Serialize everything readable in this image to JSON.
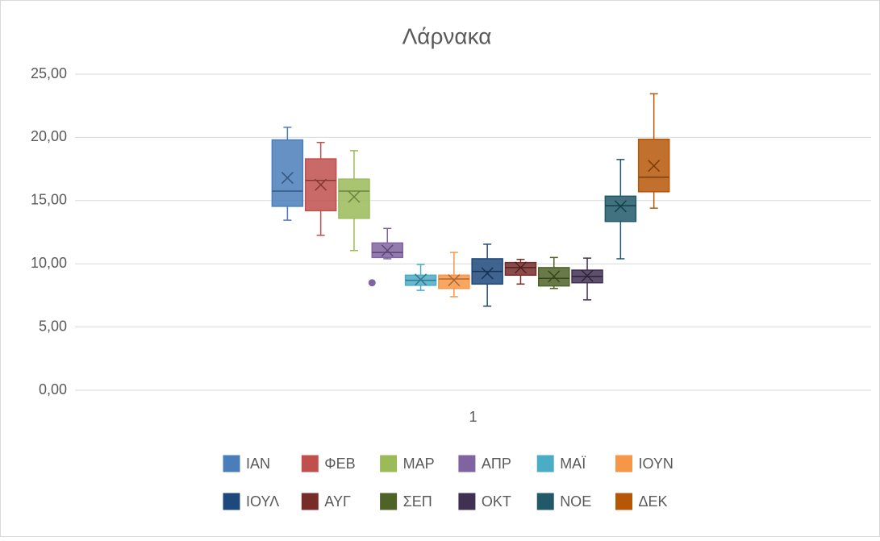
{
  "chart_data": {
    "type": "box",
    "title": "Λάρνακα",
    "categories": [
      "1"
    ],
    "ylim": [
      0,
      25
    ],
    "yticks": [
      {
        "value": 0,
        "label": "0,00"
      },
      {
        "value": 5,
        "label": "5,00"
      },
      {
        "value": 10,
        "label": "10,00"
      },
      {
        "value": 15,
        "label": "15,00"
      },
      {
        "value": 20,
        "label": "20,00"
      },
      {
        "value": 25,
        "label": "25,00"
      }
    ],
    "grid": true,
    "legend": "bottom",
    "series": [
      {
        "name": "ΙΑΝ",
        "color": "#4a7ebb",
        "min": 13.45,
        "q1": 14.55,
        "median": 15.75,
        "q3": 19.8,
        "max": 20.8,
        "mean": 16.8,
        "outliers": []
      },
      {
        "name": "ΦΕΒ",
        "color": "#c0504d",
        "min": 12.25,
        "q1": 14.2,
        "median": 16.6,
        "q3": 18.3,
        "max": 19.6,
        "mean": 16.25,
        "outliers": []
      },
      {
        "name": "ΜΑΡ",
        "color": "#9bbb59",
        "min": 11.05,
        "q1": 13.6,
        "median": 15.75,
        "q3": 16.7,
        "max": 18.95,
        "mean": 15.3,
        "outliers": []
      },
      {
        "name": "ΑΠΡ",
        "color": "#8064a2",
        "min": 10.4,
        "q1": 10.5,
        "median": 10.9,
        "q3": 11.65,
        "max": 12.8,
        "mean": 11.05,
        "outliers": [
          8.5
        ]
      },
      {
        "name": "ΜΑΪ",
        "color": "#4bacc6",
        "min": 7.9,
        "q1": 8.3,
        "median": 8.7,
        "q3": 9.1,
        "max": 9.95,
        "mean": 8.75,
        "outliers": []
      },
      {
        "name": "ΙΟΥΝ",
        "color": "#f79646",
        "min": 7.4,
        "q1": 8.05,
        "median": 8.8,
        "q3": 9.1,
        "max": 10.9,
        "mean": 8.7,
        "outliers": []
      },
      {
        "name": "ΙΟΥΛ",
        "color": "#1f497d",
        "min": 6.65,
        "q1": 8.4,
        "median": 9.4,
        "q3": 10.4,
        "max": 11.55,
        "mean": 9.25,
        "outliers": []
      },
      {
        "name": "ΑΥΓ",
        "color": "#772c2a",
        "min": 8.4,
        "q1": 9.1,
        "median": 9.7,
        "q3": 10.1,
        "max": 10.35,
        "mean": 9.7,
        "outliers": []
      },
      {
        "name": "ΣΕΠ",
        "color": "#4f6228",
        "min": 8.05,
        "q1": 8.25,
        "median": 8.85,
        "q3": 9.7,
        "max": 10.5,
        "mean": 9.0,
        "outliers": []
      },
      {
        "name": "ΟΚΤ",
        "color": "#403152",
        "min": 7.15,
        "q1": 8.5,
        "median": 9.0,
        "q3": 9.5,
        "max": 10.45,
        "mean": 9.05,
        "outliers": []
      },
      {
        "name": "ΝΟΕ",
        "color": "#215968",
        "min": 10.4,
        "q1": 13.35,
        "median": 14.6,
        "q3": 15.35,
        "max": 18.25,
        "mean": 14.55,
        "outliers": []
      },
      {
        "name": "ΔΕΚ",
        "color": "#b65708",
        "min": 14.4,
        "q1": 15.7,
        "median": 16.85,
        "q3": 19.85,
        "max": 23.45,
        "mean": 17.75,
        "outliers": []
      }
    ]
  }
}
